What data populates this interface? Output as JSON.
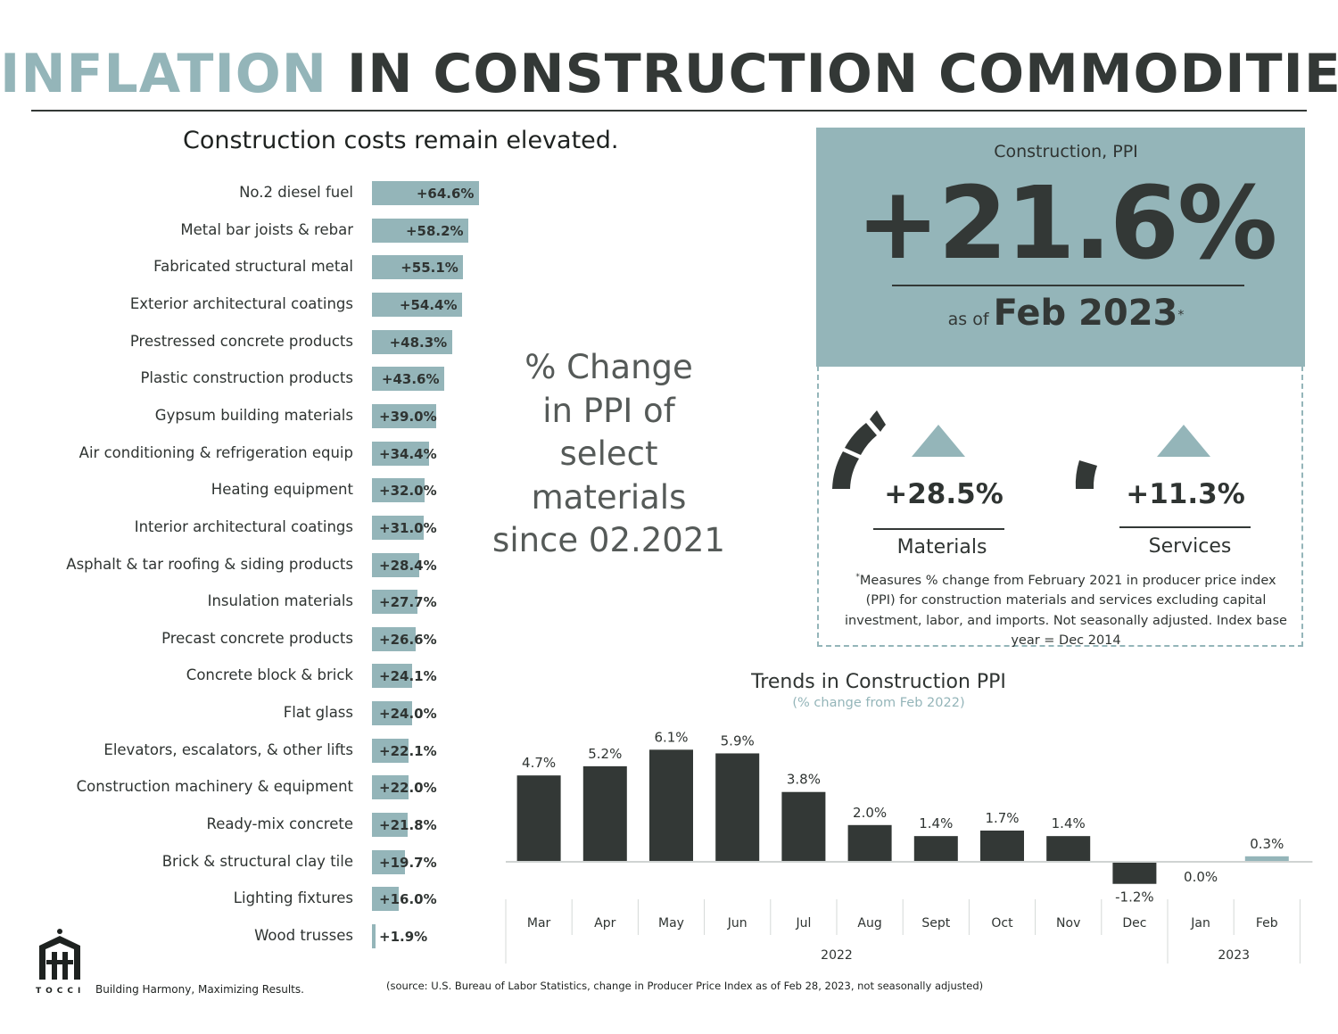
{
  "header": {
    "title_accent": "INFLATION",
    "title_rest": "IN CONSTRUCTION COMMODITIES"
  },
  "left_panel": {
    "subtitle": "Construction costs remain elevated.",
    "center_caption": "% Change\nin PPI of\nselect\nmaterials\nsince 02.2021"
  },
  "ppi_card": {
    "label": "Construction, PPI",
    "value": "+21.6%",
    "as_of_prefix": "as of",
    "as_of_date": "Feb 2023",
    "as_of_mark": "*",
    "materials": {
      "value": "+28.5%",
      "name": "Materials",
      "arrow": "up-triangle-icon"
    },
    "services": {
      "value": "+11.3%",
      "name": "Services",
      "arrow": "up-triangle-icon"
    },
    "footnote_mark": "*",
    "footnote": "Measures % change from February 2021 in producer price index (PPI) for construction materials and services excluding capital investment, labor, and imports. Not seasonally adjusted. Index base year = Dec 2014"
  },
  "footer": {
    "source": "(source: U.S. Bureau of Labor Statistics, change in Producer Price Index as of Feb 28, 2023, not seasonally adjusted)",
    "logo_text": "TOCCI",
    "tagline": "Building Harmony, Maximizing Results."
  },
  "colors": {
    "accent": "#94b5b9",
    "dark": "#333836",
    "text": "#2f3432"
  },
  "chart_data": [
    {
      "type": "bar",
      "orientation": "horizontal",
      "title": "Construction costs remain elevated.",
      "categories": [
        "No.2 diesel fuel",
        "Metal bar joists & rebar",
        "Fabricated structural metal",
        "Exterior architectural coatings",
        "Prestressed concrete products",
        "Plastic construction products",
        "Gypsum building materials",
        "Air conditioning & refrigeration equip",
        "Heating equipment",
        "Interior architectural coatings",
        "Asphalt & tar roofing & siding products",
        "Insulation materials",
        "Precast concrete products",
        "Concrete block & brick",
        "Flat glass",
        "Elevators, escalators, & other lifts",
        "Construction machinery & equipment",
        "Ready-mix concrete",
        "Brick & structural clay tile",
        "Lighting fixtures",
        "Wood trusses"
      ],
      "values": [
        64.6,
        58.2,
        55.1,
        54.4,
        48.3,
        43.6,
        39.0,
        34.4,
        32.0,
        31.0,
        28.4,
        27.7,
        26.6,
        24.1,
        24.0,
        22.1,
        22.0,
        21.8,
        19.7,
        16.0,
        1.9
      ],
      "labels": [
        "+64.6%",
        "+58.2%",
        "+55.1%",
        "+54.4%",
        "+48.3%",
        "+43.6%",
        "+39.0%",
        "+34.4%",
        "+32.0%",
        "+31.0%",
        "+28.4%",
        "+27.7%",
        "+26.6%",
        "+24.1%",
        "+24.0%",
        "+22.1%",
        "+22.0%",
        "+21.8%",
        "+19.7%",
        "+16.0%",
        "+1.9%"
      ],
      "bar_color": "#94b5b9"
    },
    {
      "type": "bar",
      "title": "Trends in Construction PPI",
      "subtitle": "(% change from Feb 2022)",
      "categories": [
        "Mar",
        "Apr",
        "May",
        "Jun",
        "Jul",
        "Aug",
        "Sept",
        "Oct",
        "Nov",
        "Dec",
        "Jan",
        "Feb"
      ],
      "groups": [
        {
          "name": "2022",
          "count": 10
        },
        {
          "name": "2023",
          "count": 2
        }
      ],
      "values": [
        4.7,
        5.2,
        6.1,
        5.9,
        3.8,
        2.0,
        1.4,
        1.7,
        1.4,
        -1.2,
        0.0,
        0.3
      ],
      "labels": [
        "4.7%",
        "5.2%",
        "6.1%",
        "5.9%",
        "3.8%",
        "2.0%",
        "1.4%",
        "1.7%",
        "1.4%",
        "-1.2%",
        "0.0%",
        "0.3%"
      ],
      "highlight_index": 11,
      "bar_color": "#333836",
      "highlight_color": "#94b5b9"
    }
  ]
}
